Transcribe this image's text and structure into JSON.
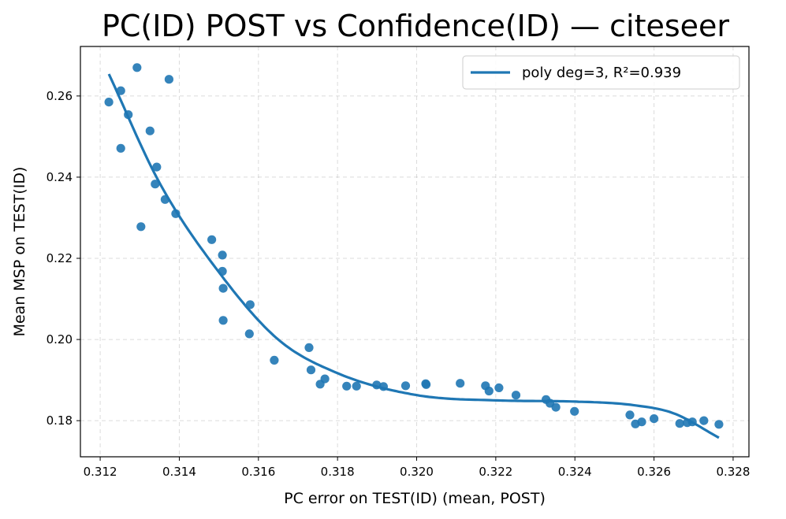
{
  "chart_data": {
    "type": "scatter",
    "title": "PC(ID) POST vs Confidence(ID) — citeseer",
    "xlabel": "PC error on TEST(ID) (mean, POST)",
    "ylabel": "Mean MSP on TEST(ID)",
    "xlim": [
      0.3115,
      0.3284
    ],
    "ylim": [
      0.1711,
      0.2722
    ],
    "xticks": [
      0.312,
      0.314,
      0.316,
      0.318,
      0.32,
      0.322,
      0.324,
      0.326,
      0.328
    ],
    "xtick_labels": [
      "0.312",
      "0.314",
      "0.316",
      "0.318",
      "0.320",
      "0.322",
      "0.324",
      "0.326",
      "0.328"
    ],
    "yticks": [
      0.18,
      0.2,
      0.22,
      0.24,
      0.26
    ],
    "ytick_labels": [
      "0.18",
      "0.20",
      "0.22",
      "0.24",
      "0.26"
    ],
    "grid": true,
    "legend_position": "top-right",
    "series": [
      {
        "name": "points",
        "color": "#1f77b4",
        "points": [
          [
            0.31222,
            0.2585
          ],
          [
            0.31252,
            0.2613
          ],
          [
            0.31252,
            0.2471
          ],
          [
            0.31271,
            0.2554
          ],
          [
            0.31293,
            0.267
          ],
          [
            0.31303,
            0.2278
          ],
          [
            0.31326,
            0.2514
          ],
          [
            0.31339,
            0.2383
          ],
          [
            0.31343,
            0.2425
          ],
          [
            0.31364,
            0.2345
          ],
          [
            0.31374,
            0.2641
          ],
          [
            0.31391,
            0.231
          ],
          [
            0.31482,
            0.2246
          ],
          [
            0.31509,
            0.2208
          ],
          [
            0.31509,
            0.2168
          ],
          [
            0.31511,
            0.2126
          ],
          [
            0.31511,
            0.2047
          ],
          [
            0.31577,
            0.2014
          ],
          [
            0.31579,
            0.2086
          ],
          [
            0.3164,
            0.1949
          ],
          [
            0.31728,
            0.198
          ],
          [
            0.31733,
            0.1925
          ],
          [
            0.31756,
            0.189
          ],
          [
            0.31768,
            0.1903
          ],
          [
            0.31823,
            0.1885
          ],
          [
            0.31848,
            0.1885
          ],
          [
            0.31899,
            0.1888
          ],
          [
            0.31916,
            0.1884
          ],
          [
            0.31972,
            0.1886
          ],
          [
            0.32023,
            0.1891
          ],
          [
            0.32024,
            0.1889
          ],
          [
            0.3211,
            0.1892
          ],
          [
            0.32174,
            0.1886
          ],
          [
            0.32183,
            0.1873
          ],
          [
            0.32208,
            0.1881
          ],
          [
            0.32251,
            0.1863
          ],
          [
            0.32327,
            0.1852
          ],
          [
            0.32337,
            0.1843
          ],
          [
            0.32352,
            0.1833
          ],
          [
            0.32399,
            0.1823
          ],
          [
            0.32539,
            0.1814
          ],
          [
            0.32553,
            0.1792
          ],
          [
            0.32569,
            0.1797
          ],
          [
            0.326,
            0.1805
          ],
          [
            0.32665,
            0.1793
          ],
          [
            0.32684,
            0.1795
          ],
          [
            0.32697,
            0.1797
          ],
          [
            0.32726,
            0.18
          ],
          [
            0.32764,
            0.1791
          ]
        ]
      },
      {
        "name": "poly deg=3, R²=0.939",
        "color": "#1f77b4",
        "type": "line",
        "fit": {
          "degree": 3,
          "x_range": [
            0.31222,
            0.32764
          ],
          "knots": [
            [
              0.31222,
              0.2654
            ],
            [
              0.3135,
              0.2386
            ],
            [
              0.315,
              0.2166
            ],
            [
              0.3165,
              0.2
            ],
            [
              0.318,
              0.1917
            ],
            [
              0.32,
              0.1863
            ],
            [
              0.322,
              0.185
            ],
            [
              0.324,
              0.1847
            ],
            [
              0.3255,
              0.1838
            ],
            [
              0.3265,
              0.1818
            ],
            [
              0.32764,
              0.1758
            ]
          ]
        }
      }
    ],
    "legend": [
      {
        "label": "poly deg=3, R²=0.939",
        "color": "#1f77b4"
      }
    ]
  }
}
